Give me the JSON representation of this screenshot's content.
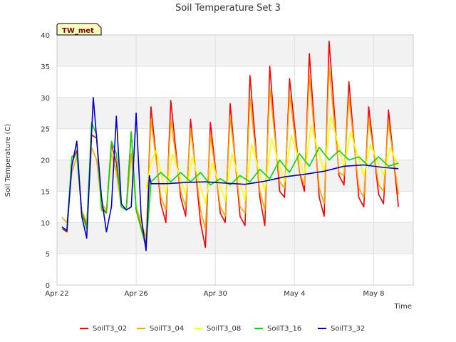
{
  "chart_data": {
    "type": "line",
    "title": "Soil Temperature Set 3",
    "xlabel": "Time",
    "ylabel": "Soil Temperature (C)",
    "badge": "TW_met",
    "ylim": [
      0,
      40
    ],
    "yticks": [
      0,
      5,
      10,
      15,
      20,
      25,
      30,
      35,
      40
    ],
    "xlim": [
      "2024-04-22",
      "2024-05-10"
    ],
    "xtick_labels": [
      "Apr 22",
      "Apr 26",
      "Apr 30",
      "May 4",
      "May 8"
    ],
    "grid": true,
    "legend_position": "bottom",
    "colors": {
      "SoilT3_02": "#ff0000",
      "SoilT3_04": "#ffa500",
      "SoilT3_08": "#ffff00",
      "SoilT3_16": "#00dd00",
      "SoilT3_32": "#0000cc",
      "band": "#f2f2f2",
      "badge_fill": "#ffffc0"
    },
    "series": [
      {
        "name": "SoilT3_02",
        "points": [
          [
            "2024-04-22 06:00",
            9.0
          ],
          [
            "2024-04-22 12:00",
            8.5
          ],
          [
            "2024-04-22 18:00",
            19.5
          ],
          [
            "2024-04-23 00:00",
            21.5
          ],
          [
            "2024-04-23 06:00",
            12.0
          ],
          [
            "2024-04-23 12:00",
            9.5
          ],
          [
            "2024-04-23 18:00",
            24.0
          ],
          [
            "2024-04-24 00:00",
            23.5
          ],
          [
            "2024-04-24 06:00",
            12.5
          ],
          [
            "2024-04-24 12:00",
            11.5
          ],
          [
            "2024-04-24 18:00",
            22.5
          ],
          [
            "2024-04-25 00:00",
            19.5
          ],
          [
            "2024-04-25 06:00",
            12.5
          ],
          [
            "2024-04-25 12:00",
            12.0
          ],
          [
            "2024-04-25 18:00",
            24.5
          ],
          [
            "2024-04-26 00:00",
            12.0
          ],
          [
            "2024-04-26 12:00",
            6.5
          ],
          [
            "2024-04-26 18:00",
            28.5
          ],
          [
            "2024-04-27 06:00",
            13.0
          ],
          [
            "2024-04-27 12:00",
            10.0
          ],
          [
            "2024-04-27 18:00",
            29.5
          ],
          [
            "2024-04-28 06:00",
            14.0
          ],
          [
            "2024-04-28 12:00",
            11.0
          ],
          [
            "2024-04-28 18:00",
            26.5
          ],
          [
            "2024-04-29 06:00",
            10.0
          ],
          [
            "2024-04-29 12:00",
            6.0
          ],
          [
            "2024-04-29 18:00",
            26.0
          ],
          [
            "2024-04-30 06:00",
            11.5
          ],
          [
            "2024-04-30 12:00",
            10.0
          ],
          [
            "2024-04-30 18:00",
            29.0
          ],
          [
            "2024-05-01 06:00",
            11.0
          ],
          [
            "2024-05-01 12:00",
            9.5
          ],
          [
            "2024-05-01 18:00",
            33.5
          ],
          [
            "2024-05-02 06:00",
            14.0
          ],
          [
            "2024-05-02 12:00",
            9.5
          ],
          [
            "2024-05-02 18:00",
            35.0
          ],
          [
            "2024-05-03 06:00",
            15.0
          ],
          [
            "2024-05-03 12:00",
            14.0
          ],
          [
            "2024-05-03 18:00",
            33.0
          ],
          [
            "2024-05-04 06:00",
            18.0
          ],
          [
            "2024-05-04 12:00",
            15.0
          ],
          [
            "2024-05-04 18:00",
            37.0
          ],
          [
            "2024-05-05 06:00",
            14.0
          ],
          [
            "2024-05-05 12:00",
            11.0
          ],
          [
            "2024-05-05 18:00",
            39.0
          ],
          [
            "2024-05-06 06:00",
            17.5
          ],
          [
            "2024-05-06 12:00",
            16.0
          ],
          [
            "2024-05-06 18:00",
            32.5
          ],
          [
            "2024-05-07 06:00",
            14.0
          ],
          [
            "2024-05-07 12:00",
            12.5
          ],
          [
            "2024-05-07 18:00",
            28.5
          ],
          [
            "2024-05-08 06:00",
            14.5
          ],
          [
            "2024-05-08 12:00",
            13.0
          ],
          [
            "2024-05-08 18:00",
            28.0
          ],
          [
            "2024-05-09 06:00",
            12.5
          ]
        ]
      },
      {
        "name": "SoilT3_04",
        "points": [
          [
            "2024-04-22 06:00",
            10.8
          ],
          [
            "2024-04-22 12:00",
            10.0
          ],
          [
            "2024-04-22 18:00",
            18.0
          ],
          [
            "2024-04-23 00:00",
            20.5
          ],
          [
            "2024-04-23 06:00",
            12.0
          ],
          [
            "2024-04-23 12:00",
            10.0
          ],
          [
            "2024-04-23 18:00",
            22.0
          ],
          [
            "2024-04-24 00:00",
            20.0
          ],
          [
            "2024-04-24 06:00",
            13.0
          ],
          [
            "2024-04-24 12:00",
            12.0
          ],
          [
            "2024-04-24 18:00",
            21.0
          ],
          [
            "2024-04-25 00:00",
            18.0
          ],
          [
            "2024-04-25 06:00",
            12.5
          ],
          [
            "2024-04-25 12:00",
            12.0
          ],
          [
            "2024-04-25 18:00",
            21.0
          ],
          [
            "2024-04-26 00:00",
            12.5
          ],
          [
            "2024-04-26 12:00",
            7.5
          ],
          [
            "2024-04-26 18:00",
            26.5
          ],
          [
            "2024-04-27 06:00",
            14.0
          ],
          [
            "2024-04-27 12:00",
            12.0
          ],
          [
            "2024-04-27 18:00",
            26.5
          ],
          [
            "2024-04-28 06:00",
            15.0
          ],
          [
            "2024-04-28 12:00",
            12.5
          ],
          [
            "2024-04-28 18:00",
            25.0
          ],
          [
            "2024-04-29 06:00",
            12.0
          ],
          [
            "2024-04-29 12:00",
            9.0
          ],
          [
            "2024-04-29 18:00",
            24.0
          ],
          [
            "2024-04-30 06:00",
            12.5
          ],
          [
            "2024-04-30 12:00",
            11.0
          ],
          [
            "2024-04-30 18:00",
            27.0
          ],
          [
            "2024-05-01 06:00",
            12.5
          ],
          [
            "2024-05-01 12:00",
            11.5
          ],
          [
            "2024-05-01 18:00",
            30.0
          ],
          [
            "2024-05-02 06:00",
            15.0
          ],
          [
            "2024-05-02 12:00",
            12.0
          ],
          [
            "2024-05-02 18:00",
            31.5
          ],
          [
            "2024-05-03 06:00",
            16.5
          ],
          [
            "2024-05-03 12:00",
            15.5
          ],
          [
            "2024-05-03 18:00",
            30.5
          ],
          [
            "2024-05-04 06:00",
            18.0
          ],
          [
            "2024-05-04 12:00",
            16.0
          ],
          [
            "2024-05-04 18:00",
            33.5
          ],
          [
            "2024-05-05 06:00",
            15.5
          ],
          [
            "2024-05-05 12:00",
            13.0
          ],
          [
            "2024-05-05 18:00",
            35.0
          ],
          [
            "2024-05-06 06:00",
            18.0
          ],
          [
            "2024-05-06 12:00",
            17.5
          ],
          [
            "2024-05-06 18:00",
            30.0
          ],
          [
            "2024-05-07 06:00",
            15.5
          ],
          [
            "2024-05-07 12:00",
            14.0
          ],
          [
            "2024-05-07 18:00",
            26.5
          ],
          [
            "2024-05-08 06:00",
            16.0
          ],
          [
            "2024-05-08 12:00",
            15.0
          ],
          [
            "2024-05-08 18:00",
            26.0
          ],
          [
            "2024-05-09 06:00",
            14.5
          ]
        ]
      },
      {
        "name": "SoilT3_08",
        "points": [
          [
            "2024-04-26 12:00",
            15.5
          ],
          [
            "2024-04-26 18:00",
            19.5
          ],
          [
            "2024-04-27 00:00",
            21.5
          ],
          [
            "2024-04-27 12:00",
            14.5
          ],
          [
            "2024-04-27 20:00",
            21.0
          ],
          [
            "2024-04-28 12:00",
            14.5
          ],
          [
            "2024-04-28 20:00",
            20.5
          ],
          [
            "2024-04-29 12:00",
            13.0
          ],
          [
            "2024-04-29 20:00",
            19.5
          ],
          [
            "2024-04-30 12:00",
            13.5
          ],
          [
            "2024-04-30 20:00",
            21.0
          ],
          [
            "2024-05-01 12:00",
            13.5
          ],
          [
            "2024-05-01 20:00",
            22.5
          ],
          [
            "2024-05-02 12:00",
            15.0
          ],
          [
            "2024-05-02 20:00",
            23.5
          ],
          [
            "2024-05-03 12:00",
            16.5
          ],
          [
            "2024-05-03 20:00",
            24.0
          ],
          [
            "2024-05-04 12:00",
            17.5
          ],
          [
            "2024-05-04 20:00",
            25.5
          ],
          [
            "2024-05-05 12:00",
            18.0
          ],
          [
            "2024-05-05 20:00",
            27.0
          ],
          [
            "2024-05-06 12:00",
            19.0
          ],
          [
            "2024-05-06 20:00",
            24.5
          ],
          [
            "2024-05-07 12:00",
            17.5
          ],
          [
            "2024-05-07 20:00",
            22.5
          ],
          [
            "2024-05-08 12:00",
            17.5
          ],
          [
            "2024-05-08 20:00",
            22.0
          ],
          [
            "2024-05-09 06:00",
            19.0
          ]
        ]
      },
      {
        "name": "SoilT3_16",
        "points": [
          [
            "2024-04-22 06:00",
            9.0
          ],
          [
            "2024-04-22 12:00",
            8.8
          ],
          [
            "2024-04-22 18:00",
            20.5
          ],
          [
            "2024-04-23 00:00",
            21.0
          ],
          [
            "2024-04-23 06:00",
            11.5
          ],
          [
            "2024-04-23 12:00",
            9.0
          ],
          [
            "2024-04-23 18:00",
            26.0
          ],
          [
            "2024-04-24 00:00",
            24.0
          ],
          [
            "2024-04-24 06:00",
            12.0
          ],
          [
            "2024-04-24 12:00",
            11.5
          ],
          [
            "2024-04-24 18:00",
            23.0
          ],
          [
            "2024-04-25 00:00",
            21.0
          ],
          [
            "2024-04-25 06:00",
            12.5
          ],
          [
            "2024-04-25 12:00",
            12.0
          ],
          [
            "2024-04-25 18:00",
            24.5
          ],
          [
            "2024-04-26 00:00",
            12.0
          ],
          [
            "2024-04-26 12:00",
            6.0
          ],
          [
            "2024-04-26 18:00",
            16.5
          ],
          [
            "2024-04-27 06:00",
            18.0
          ],
          [
            "2024-04-27 18:00",
            16.5
          ],
          [
            "2024-04-28 06:00",
            18.0
          ],
          [
            "2024-04-28 18:00",
            16.5
          ],
          [
            "2024-04-29 06:00",
            18.0
          ],
          [
            "2024-04-29 18:00",
            16.0
          ],
          [
            "2024-04-30 06:00",
            17.0
          ],
          [
            "2024-04-30 18:00",
            16.0
          ],
          [
            "2024-05-01 06:00",
            17.5
          ],
          [
            "2024-05-01 18:00",
            16.5
          ],
          [
            "2024-05-02 06:00",
            18.5
          ],
          [
            "2024-05-02 18:00",
            17.0
          ],
          [
            "2024-05-03 06:00",
            20.0
          ],
          [
            "2024-05-03 18:00",
            18.0
          ],
          [
            "2024-05-04 06:00",
            21.0
          ],
          [
            "2024-05-04 18:00",
            19.0
          ],
          [
            "2024-05-05 06:00",
            22.0
          ],
          [
            "2024-05-05 18:00",
            20.0
          ],
          [
            "2024-05-06 06:00",
            21.5
          ],
          [
            "2024-05-06 18:00",
            20.0
          ],
          [
            "2024-05-07 06:00",
            20.5
          ],
          [
            "2024-05-07 18:00",
            19.0
          ],
          [
            "2024-05-08 06:00",
            20.5
          ],
          [
            "2024-05-08 18:00",
            19.0
          ],
          [
            "2024-05-09 06:00",
            19.5
          ]
        ]
      },
      {
        "name": "SoilT3_32",
        "points": [
          [
            "2024-04-22 06:00",
            9.3
          ],
          [
            "2024-04-22 12:00",
            8.7
          ],
          [
            "2024-04-22 18:00",
            19.0
          ],
          [
            "2024-04-23 00:00",
            23.0
          ],
          [
            "2024-04-23 06:00",
            11.0
          ],
          [
            "2024-04-23 12:00",
            7.5
          ],
          [
            "2024-04-23 20:00",
            30.0
          ],
          [
            "2024-04-24 06:00",
            14.0
          ],
          [
            "2024-04-24 12:00",
            8.5
          ],
          [
            "2024-04-24 18:00",
            12.5
          ],
          [
            "2024-04-25 00:00",
            27.0
          ],
          [
            "2024-04-25 06:00",
            13.0
          ],
          [
            "2024-04-25 12:00",
            12.0
          ],
          [
            "2024-04-25 18:00",
            12.5
          ],
          [
            "2024-04-26 00:00",
            27.5
          ],
          [
            "2024-04-26 06:00",
            11.0
          ],
          [
            "2024-04-26 12:00",
            5.5
          ],
          [
            "2024-04-26 16:00",
            17.5
          ],
          [
            "2024-04-26 18:00",
            16.2
          ],
          [
            "2024-04-27 12:00",
            16.2
          ],
          [
            "2024-04-28 12:00",
            16.4
          ],
          [
            "2024-04-29 12:00",
            16.5
          ],
          [
            "2024-04-30 12:00",
            16.3
          ],
          [
            "2024-05-01 12:00",
            16.1
          ],
          [
            "2024-05-02 12:00",
            16.6
          ],
          [
            "2024-05-03 12:00",
            17.3
          ],
          [
            "2024-05-04 12:00",
            17.7
          ],
          [
            "2024-05-05 12:00",
            18.2
          ],
          [
            "2024-05-06 12:00",
            19.0
          ],
          [
            "2024-05-07 12:00",
            19.2
          ],
          [
            "2024-05-08 12:00",
            18.8
          ],
          [
            "2024-05-09 06:00",
            18.6
          ]
        ]
      }
    ]
  }
}
